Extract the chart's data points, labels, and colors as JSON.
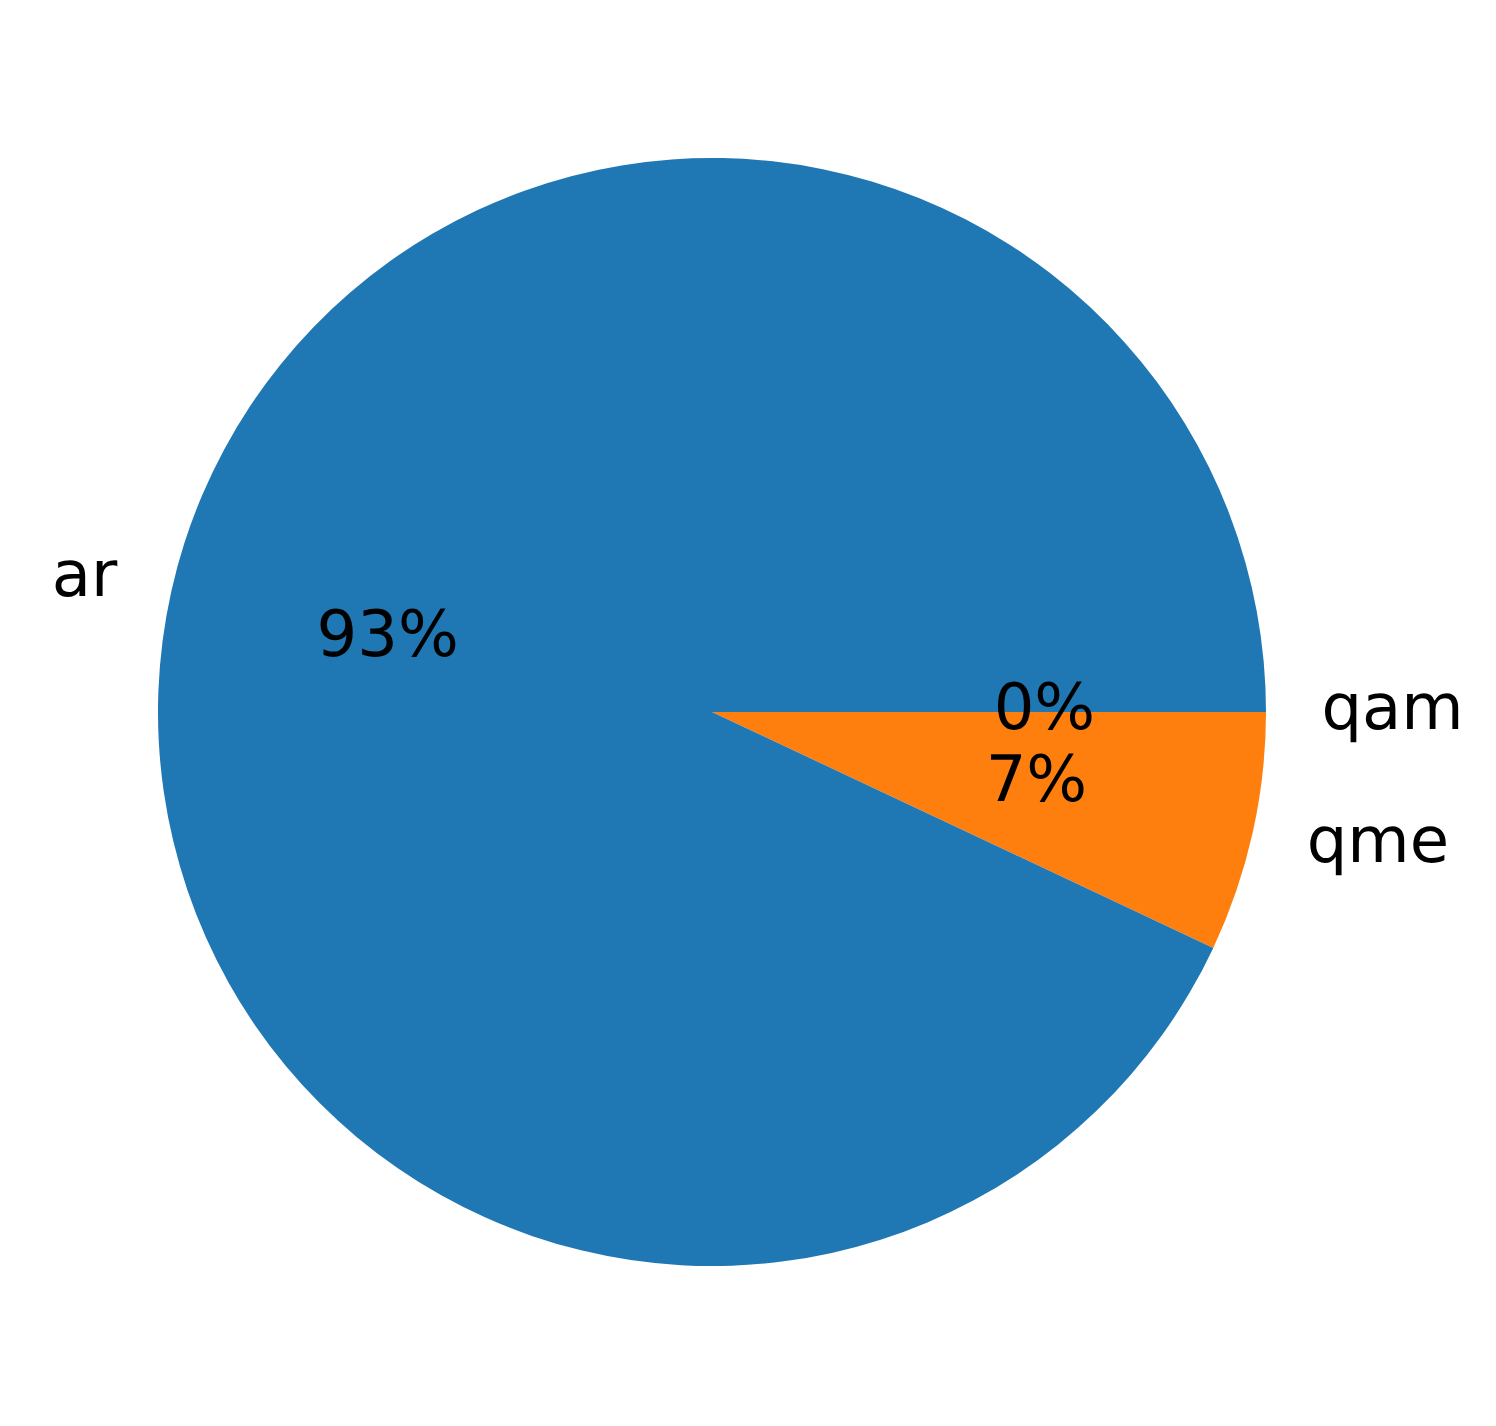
{
  "chart_data": {
    "type": "pie",
    "categories": [
      "ar",
      "qme",
      "qam"
    ],
    "values": [
      93,
      7,
      0
    ],
    "colors": [
      "#1f77b4",
      "#ff7f0e",
      "#2ca02c"
    ],
    "value_labels": [
      "93%",
      "7%",
      "0%"
    ],
    "legend": false
  }
}
